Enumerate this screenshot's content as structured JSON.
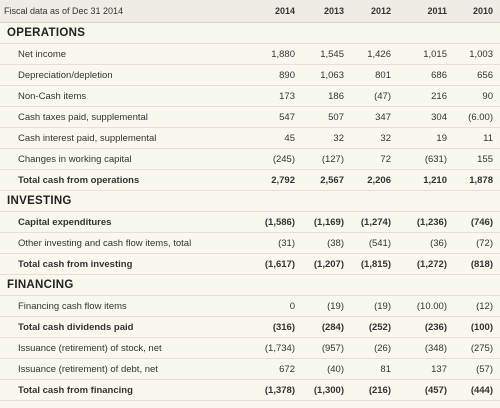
{
  "header": {
    "label": "Fiscal data as of Dec 31 2014",
    "years": [
      "2014",
      "2013",
      "2012",
      "2011",
      "2010"
    ]
  },
  "sections": [
    {
      "title": "OPERATIONS",
      "rows": [
        {
          "label": "Net income",
          "bold": false,
          "values": [
            "1,880",
            "1,545",
            "1,426",
            "1,015",
            "1,003"
          ]
        },
        {
          "label": "Depreciation/depletion",
          "bold": false,
          "values": [
            "890",
            "1,063",
            "801",
            "686",
            "656"
          ]
        },
        {
          "label": "Non-Cash items",
          "bold": false,
          "values": [
            "173",
            "186",
            "(47)",
            "216",
            "90"
          ]
        },
        {
          "label": "Cash taxes paid, supplemental",
          "bold": false,
          "values": [
            "547",
            "507",
            "347",
            "304",
            "(6.00)"
          ]
        },
        {
          "label": "Cash interest paid, supplemental",
          "bold": false,
          "values": [
            "45",
            "32",
            "32",
            "19",
            "11"
          ]
        },
        {
          "label": "Changes in working capital",
          "bold": false,
          "values": [
            "(245)",
            "(127)",
            "72",
            "(631)",
            "155"
          ]
        },
        {
          "label": "Total cash from operations",
          "bold": true,
          "values": [
            "2,792",
            "2,567",
            "2,206",
            "1,210",
            "1,878"
          ]
        }
      ]
    },
    {
      "title": "INVESTING",
      "rows": [
        {
          "label": "Capital expenditures",
          "bold": true,
          "values": [
            "(1,586)",
            "(1,169)",
            "(1,274)",
            "(1,236)",
            "(746)"
          ]
        },
        {
          "label": "Other investing and cash flow items, total",
          "bold": false,
          "values": [
            "(31)",
            "(38)",
            "(541)",
            "(36)",
            "(72)"
          ]
        },
        {
          "label": "Total cash from investing",
          "bold": true,
          "values": [
            "(1,617)",
            "(1,207)",
            "(1,815)",
            "(1,272)",
            "(818)"
          ]
        }
      ]
    },
    {
      "title": "FINANCING",
      "rows": [
        {
          "label": "Financing cash flow items",
          "bold": false,
          "values": [
            "0",
            "(19)",
            "(19)",
            "(10.00)",
            "(12)"
          ]
        },
        {
          "label": "Total cash dividends paid",
          "bold": true,
          "values": [
            "(316)",
            "(284)",
            "(252)",
            "(236)",
            "(100)"
          ]
        },
        {
          "label": "Issuance (retirement) of stock, net",
          "bold": false,
          "values": [
            "(1,734)",
            "(957)",
            "(26)",
            "(348)",
            "(275)"
          ]
        },
        {
          "label": "Issuance (retirement) of debt, net",
          "bold": false,
          "values": [
            "672",
            "(40)",
            "81",
            "137",
            "(57)"
          ]
        },
        {
          "label": "Total cash from financing",
          "bold": true,
          "values": [
            "(1,378)",
            "(1,300)",
            "(216)",
            "(457)",
            "(444)"
          ]
        }
      ]
    }
  ]
}
